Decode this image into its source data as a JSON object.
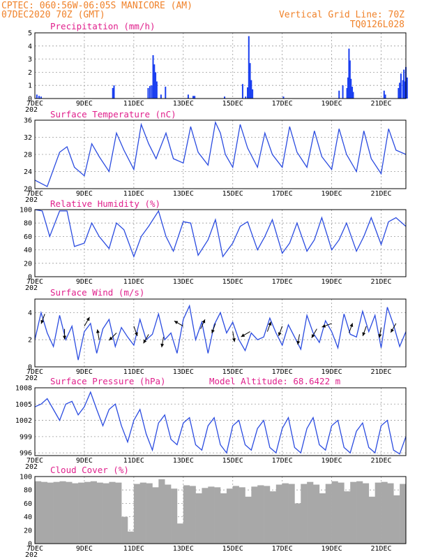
{
  "header": {
    "line1": "CPTEC:   060:56W-06:05S   MANICORE (AM)",
    "line2": "07DEC2020 70Z (GMT)",
    "grid_note": "Vertical Grid Line: 70Z",
    "model_code": "TQ0126L028"
  },
  "x_axis": {
    "start_date": "07DEC",
    "end_date": "22DEC",
    "tick_labels": [
      "7DEC",
      "9DEC",
      "11DEC",
      "13DEC",
      "15DEC",
      "17DEC",
      "19DEC",
      "21DEC"
    ],
    "year_stub": "202"
  },
  "colors": {
    "series": "#2a4be0",
    "precip": "#1a3ff0",
    "cloud": "#a8a8a8",
    "header": "#f0822a",
    "panel_title": "#e0208c"
  },
  "panels": {
    "precipitation": {
      "title": "Precipitation (mm/h)"
    },
    "temperature": {
      "title": "Surface Temperature (nC)"
    },
    "humidity": {
      "title": "Relative Humidity (%)"
    },
    "wind": {
      "title": "Surface Wind (m/s)"
    },
    "pressure": {
      "title": "Surface Pressure (hPa)",
      "altitude_note": "Model Altitude: 68.6422 m"
    },
    "cloud": {
      "title": "Cloud Cover (%)"
    }
  },
  "chart_data": [
    {
      "type": "bar",
      "panel": "precipitation",
      "title": "Precipitation (mm/h)",
      "ylim": [
        0,
        5
      ],
      "yticks": [
        0,
        1,
        2,
        3,
        4,
        5
      ],
      "x_unit": "days since 07DEC",
      "x": [
        0.08,
        0.17,
        0.25,
        3.15,
        3.2,
        4.58,
        4.65,
        4.72,
        4.78,
        4.83,
        4.88,
        4.93,
        5.1,
        5.28,
        6.2,
        6.4,
        6.46,
        7.67,
        8.4,
        8.52,
        8.6,
        8.65,
        8.7,
        8.75,
        8.8,
        10.05,
        12.3,
        12.45,
        12.62,
        12.66,
        12.7,
        12.74,
        12.78,
        12.83,
        12.87,
        14.12,
        14.17,
        14.7,
        14.75,
        14.8,
        14.88,
        14.92,
        14.96,
        15.0,
        15.05
      ],
      "values": [
        0.3,
        0.2,
        0.15,
        0.8,
        1.0,
        0.8,
        0.95,
        1.0,
        3.3,
        2.6,
        2.0,
        1.3,
        0.3,
        0.9,
        0.3,
        0.2,
        0.2,
        0.15,
        1.1,
        0.15,
        0.85,
        4.75,
        2.7,
        1.4,
        0.7,
        0.15,
        0.6,
        1.0,
        0.8,
        1.6,
        3.8,
        2.9,
        1.5,
        0.9,
        0.5,
        0.6,
        0.3,
        0.8,
        1.2,
        1.9,
        1.4,
        2.2,
        1.3,
        2.4,
        1.6
      ]
    },
    {
      "type": "line",
      "panel": "temperature",
      "title": "Surface Temperature (nC)",
      "ylim": [
        20,
        36
      ],
      "yticks": [
        20,
        24,
        28,
        32,
        36
      ],
      "x_unit": "days since 07DEC",
      "x": [
        0,
        0.5,
        1,
        1.3,
        1.6,
        2,
        2.3,
        2.6,
        3,
        3.3,
        3.6,
        4,
        4.3,
        4.6,
        4.9,
        5,
        5.3,
        5.6,
        6,
        6.3,
        6.6,
        7,
        7.3,
        7.5,
        7.7,
        8,
        8.3,
        8.6,
        9,
        9.3,
        9.6,
        10,
        10.3,
        10.6,
        11,
        11.3,
        11.6,
        12,
        12.3,
        12.6,
        13,
        13.3,
        13.6,
        14,
        14.3,
        14.6,
        15
      ],
      "values": [
        22.0,
        20.5,
        28.5,
        29.8,
        25.0,
        23.0,
        30.5,
        27.5,
        24.0,
        33.0,
        29.0,
        24.5,
        35.0,
        30.5,
        27.0,
        28.5,
        33.0,
        27.0,
        26.0,
        34.5,
        28.5,
        25.5,
        35.5,
        33.0,
        28.0,
        25.0,
        35.0,
        29.5,
        25.0,
        33.0,
        28.0,
        25.0,
        34.5,
        28.5,
        25.0,
        33.5,
        27.5,
        24.5,
        34.0,
        28.0,
        24.0,
        33.5,
        27.0,
        23.5,
        34.0,
        29.0,
        28.0
      ]
    },
    {
      "type": "line",
      "panel": "humidity",
      "title": "Relative Humidity (%)",
      "ylim": [
        0,
        100
      ],
      "yticks": [
        0,
        20,
        40,
        60,
        80,
        100
      ],
      "x_unit": "days since 07DEC",
      "x": [
        0,
        0.3,
        0.6,
        1,
        1.3,
        1.6,
        2,
        2.3,
        2.6,
        3,
        3.3,
        3.6,
        4,
        4.3,
        4.6,
        5,
        5.3,
        5.6,
        6,
        6.3,
        6.6,
        7,
        7.3,
        7.6,
        8,
        8.3,
        8.6,
        9,
        9.3,
        9.6,
        10,
        10.3,
        10.6,
        11,
        11.3,
        11.6,
        12,
        12.3,
        12.6,
        13,
        13.3,
        13.6,
        14,
        14.3,
        14.6,
        15
      ],
      "values": [
        100,
        98,
        60,
        98,
        98,
        45,
        50,
        80,
        60,
        42,
        80,
        70,
        30,
        60,
        75,
        98,
        60,
        38,
        82,
        80,
        32,
        55,
        85,
        30,
        50,
        75,
        82,
        40,
        60,
        85,
        35,
        50,
        80,
        38,
        55,
        88,
        40,
        55,
        80,
        38,
        60,
        88,
        48,
        82,
        88,
        75
      ]
    },
    {
      "type": "line",
      "panel": "wind",
      "title": "Surface Wind (m/s)",
      "ylim": [
        0,
        5
      ],
      "yticks": [
        0,
        2,
        4
      ],
      "x_unit": "days since 07DEC",
      "x": [
        0,
        0.25,
        0.5,
        0.75,
        1,
        1.25,
        1.5,
        1.75,
        2,
        2.25,
        2.5,
        2.75,
        3,
        3.25,
        3.5,
        3.75,
        4,
        4.25,
        4.5,
        4.75,
        5,
        5.25,
        5.5,
        5.75,
        6,
        6.25,
        6.5,
        6.75,
        7,
        7.25,
        7.5,
        7.75,
        8,
        8.25,
        8.5,
        8.75,
        9,
        9.25,
        9.5,
        9.75,
        10,
        10.25,
        10.5,
        10.75,
        11,
        11.25,
        11.5,
        11.75,
        12,
        12.25,
        12.5,
        12.75,
        13,
        13.25,
        13.5,
        13.75,
        14,
        14.25,
        14.5,
        14.75,
        15
      ],
      "values": [
        2.0,
        4.0,
        2.5,
        1.5,
        3.8,
        2.0,
        3.0,
        0.5,
        2.6,
        3.2,
        1.0,
        2.8,
        3.5,
        1.5,
        2.9,
        2.2,
        1.6,
        3.5,
        2.0,
        2.4,
        3.9,
        2.0,
        2.5,
        1.0,
        3.5,
        4.5,
        2.0,
        3.3,
        1.0,
        3.1,
        4.0,
        2.5,
        3.3,
        2.0,
        1.2,
        2.5,
        2.0,
        2.2,
        3.6,
        2.5,
        1.6,
        3.1,
        2.2,
        1.3,
        3.8,
        2.5,
        1.8,
        3.4,
        2.6,
        1.4,
        3.9,
        2.4,
        2.2,
        4.1,
        2.6,
        3.8,
        1.4,
        4.4,
        3.1,
        1.5,
        2.6
      ],
      "arrows": {
        "x": [
          0.4,
          1.2,
          2.0,
          2.6,
          3.3,
          4.0,
          4.6,
          5.2,
          6.0,
          6.7,
          7.3,
          8.0,
          8.7,
          9.4,
          10.0,
          10.7,
          11.4,
          12.0,
          12.7,
          13.4,
          14.0,
          14.6
        ],
        "speed": [
          3.9,
          2.8,
          3.0,
          2.0,
          2.5,
          3.0,
          2.4,
          2.2,
          3.0,
          2.8,
          3.2,
          2.6,
          2.6,
          2.6,
          3.0,
          2.4,
          2.8,
          3.2,
          2.5,
          3.0,
          2.9,
          3.2
        ],
        "direction_deg": [
          200,
          180,
          30,
          350,
          225,
          160,
          210,
          190,
          300,
          25,
          200,
          170,
          240,
          20,
          200,
          190,
          210,
          250,
          20,
          200,
          190,
          210
        ]
      }
    },
    {
      "type": "line",
      "panel": "pressure",
      "title": "Surface Pressure (hPa)",
      "ylim": [
        995.5,
        1008
      ],
      "yticks": [
        996,
        999,
        1002,
        1005,
        1008
      ],
      "x_unit": "days since 07DEC",
      "x": [
        0,
        0.25,
        0.5,
        0.75,
        1,
        1.25,
        1.5,
        1.75,
        2,
        2.25,
        2.5,
        2.75,
        3,
        3.25,
        3.5,
        3.75,
        4,
        4.25,
        4.5,
        4.75,
        5,
        5.25,
        5.5,
        5.75,
        6,
        6.25,
        6.5,
        6.75,
        7,
        7.25,
        7.5,
        7.75,
        8,
        8.25,
        8.5,
        8.75,
        9,
        9.25,
        9.5,
        9.75,
        10,
        10.25,
        10.5,
        10.75,
        11,
        11.25,
        11.5,
        11.75,
        12,
        12.25,
        12.5,
        12.75,
        13,
        13.25,
        13.5,
        13.75,
        14,
        14.25,
        14.5,
        14.75,
        15
      ],
      "values": [
        1004.5,
        1005.0,
        1006.0,
        1004.0,
        1002.0,
        1005.0,
        1005.5,
        1003.0,
        1004.5,
        1007.2,
        1004.0,
        1001.0,
        1004.0,
        1005.0,
        1001.0,
        998.0,
        1002.0,
        1004.0,
        999.5,
        996.5,
        1001.5,
        1003.0,
        998.5,
        997.5,
        1001.5,
        1002.5,
        997.5,
        996.5,
        1001.0,
        1002.5,
        997.5,
        996.0,
        1001.0,
        1002.0,
        997.5,
        996.5,
        1000.5,
        1002.0,
        997.0,
        996.0,
        1000.5,
        1002.5,
        997.0,
        996.0,
        1000.5,
        1002.5,
        997.5,
        996.5,
        1001.0,
        1002.0,
        997.0,
        996.0,
        1000.0,
        1001.5,
        997.0,
        996.0,
        1001.0,
        1002.0,
        996.5,
        995.8,
        999.0
      ]
    },
    {
      "type": "bar",
      "panel": "cloud",
      "title": "Cloud Cover (%)",
      "ylim": [
        0,
        100
      ],
      "yticks": [
        0,
        20,
        40,
        60,
        80,
        100
      ],
      "x_unit": "days since 07DEC",
      "x": [
        0,
        0.25,
        0.5,
        0.75,
        1,
        1.25,
        1.5,
        1.75,
        2,
        2.25,
        2.5,
        2.75,
        3,
        3.25,
        3.5,
        3.75,
        4,
        4.25,
        4.5,
        4.75,
        5,
        5.25,
        5.5,
        5.75,
        6,
        6.25,
        6.5,
        6.75,
        7,
        7.25,
        7.5,
        7.75,
        8,
        8.25,
        8.5,
        8.75,
        9,
        9.25,
        9.5,
        9.75,
        10,
        10.25,
        10.5,
        10.75,
        11,
        11.25,
        11.5,
        11.75,
        12,
        12.25,
        12.5,
        12.75,
        13,
        13.25,
        13.5,
        13.75,
        14,
        14.25,
        14.5,
        14.75
      ],
      "values": [
        93,
        92,
        91,
        92,
        93,
        92,
        90,
        91,
        92,
        93,
        91,
        90,
        92,
        91,
        40,
        18,
        89,
        91,
        90,
        84,
        96,
        88,
        82,
        30,
        87,
        86,
        75,
        83,
        85,
        84,
        75,
        82,
        86,
        84,
        70,
        85,
        87,
        86,
        78,
        88,
        90,
        89,
        60,
        89,
        92,
        88,
        75,
        89,
        93,
        91,
        78,
        92,
        93,
        90,
        70,
        91,
        92,
        90,
        72,
        89
      ]
    }
  ]
}
